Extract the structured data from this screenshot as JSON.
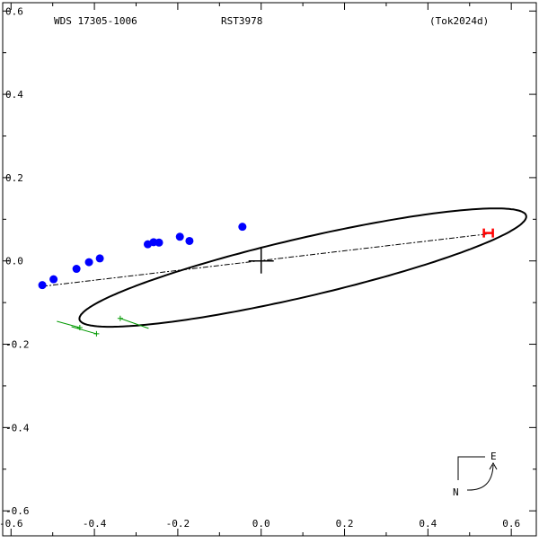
{
  "header": {
    "left": "WDS 17305-1006",
    "center": "RST3978",
    "right": "(Tok2024d)"
  },
  "compass": {
    "east_label": "E",
    "north_label": "N"
  },
  "chart_data": {
    "type": "scatter",
    "title": "",
    "xlabel": "",
    "ylabel": "",
    "xlim": [
      -0.62,
      0.66
    ],
    "ylim": [
      -0.66,
      0.62
    ],
    "x_ticks": [
      -0.6,
      -0.4,
      -0.2,
      0.0,
      0.2,
      0.4,
      0.6
    ],
    "x_tick_labels": [
      "-0.6",
      "-0.4",
      "-0.2",
      "0.0",
      "0.2",
      "0.4",
      "0.6"
    ],
    "y_ticks": [
      0.6,
      0.4,
      0.2,
      0.0,
      -0.2,
      -0.4,
      -0.6
    ],
    "y_tick_labels": [
      "0.6",
      "0.4",
      "0.2",
      "0.0",
      "-0.2",
      "-0.4",
      "-0.6"
    ],
    "minor_tick_step": 0.1,
    "grid": false,
    "orbit_ellipse": {
      "center": [
        0.1,
        -0.016
      ],
      "semi_major": 0.55,
      "semi_minor": 0.07,
      "rotation_deg": 13.1
    },
    "line_of_nodes": {
      "from": [
        -0.525,
        -0.061
      ],
      "to": [
        0.545,
        0.065
      ]
    },
    "primary_star": [
      0.0,
      0.0
    ],
    "periastron_marker": {
      "point": [
        0.545,
        0.067
      ],
      "color": "#ff0000"
    },
    "series": [
      {
        "marker": "filled-circle",
        "color": "#0000ff",
        "points": [
          [
            -0.525,
            -0.058
          ],
          [
            -0.498,
            -0.044
          ],
          [
            -0.443,
            -0.019
          ],
          [
            -0.413,
            -0.003
          ],
          [
            -0.387,
            0.006
          ],
          [
            -0.272,
            0.04
          ],
          [
            -0.258,
            0.045
          ],
          [
            -0.245,
            0.044
          ],
          [
            -0.195,
            0.058
          ],
          [
            -0.172,
            0.048
          ],
          [
            -0.045,
            0.082
          ]
        ]
      },
      {
        "marker": "plus-with-residual",
        "color": "#009900",
        "points": [
          {
            "obs": [
              -0.435,
              -0.16
            ],
            "fit": [
              -0.49,
              -0.145
            ]
          },
          {
            "obs": [
              -0.395,
              -0.175
            ],
            "fit": [
              -0.455,
              -0.158
            ]
          },
          {
            "obs": [
              -0.338,
              -0.138
            ],
            "fit": [
              -0.27,
              -0.162
            ]
          }
        ]
      }
    ]
  }
}
